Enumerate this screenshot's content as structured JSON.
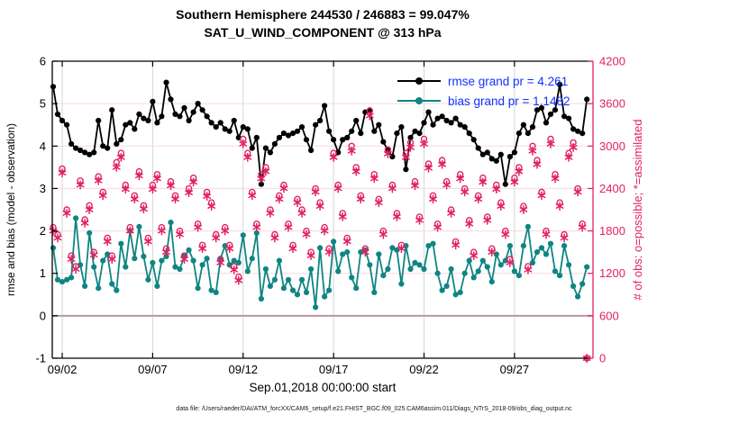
{
  "header": {
    "title_line1": "Southern Hemisphere 244530 / 246883 = 99.047%",
    "title_line2": "SAT_U_WIND_COMPONENT @ 313 hPa"
  },
  "footer": {
    "datafile": "data file: /Users/raeder/DAI/ATM_forcXX/CAM6_setup/f.e21.FHIST_BGC.f09_025.CAM6assim.011/Diags_NTrS_2018-09/obs_diag_output.nc"
  },
  "chart_data": {
    "type": "line",
    "title": "Southern Hemisphere 244530 / 246883 = 99.047% | SAT_U_WIND_COMPONENT @ 313 hPa",
    "xlabel": "Sep.01,2018 00:00:00 start",
    "ylabel_left": "rmse and bias (model - observation)",
    "ylabel_right": "# of obs: o=possible; *=assimilated",
    "ylim_left": [
      -1,
      6
    ],
    "yticks_left": [
      -1,
      0,
      1,
      2,
      3,
      4,
      5,
      6
    ],
    "ylim_right": [
      0,
      4200
    ],
    "yticks_right": [
      0,
      600,
      1200,
      1800,
      2400,
      3000,
      3600,
      4200
    ],
    "grid": true,
    "legend_position": "top-right-inside",
    "xlim_days": [
      0.45,
      30.34
    ],
    "x_start_day": 0.5,
    "x_step_days": 0.25,
    "x_epoch": "Sep.01,2018 00:00:00",
    "xticks": [
      {
        "day": 1,
        "label": "09/02"
      },
      {
        "day": 6,
        "label": "09/07"
      },
      {
        "day": 11,
        "label": "09/12"
      },
      {
        "day": 16,
        "label": "09/17"
      },
      {
        "day": 21,
        "label": "09/22"
      },
      {
        "day": 26,
        "label": "09/27"
      }
    ],
    "colors": {
      "rmse": "#000000",
      "bias": "#0f8583",
      "obs_counts": "#e22063",
      "legend_text": "#1133ff",
      "grid_horizontal": "#f5d8e0",
      "grid_vertical": "#d6d6d6",
      "zero_line": "#b5999b",
      "axis_left": "#000000",
      "axis_right": "#e22063"
    },
    "series": [
      {
        "name": "rmse",
        "legend_label": "rmse grand pr = 4.261",
        "grand_value": 4.261,
        "color": "#000000",
        "axis": "left",
        "values": [
          5.4,
          4.75,
          4.6,
          4.5,
          4.05,
          3.95,
          3.9,
          3.85,
          3.8,
          3.85,
          4.6,
          4.0,
          3.95,
          4.85,
          4.05,
          4.15,
          4.5,
          4.55,
          4.4,
          4.75,
          4.65,
          4.6,
          5.05,
          4.55,
          4.7,
          5.5,
          5.1,
          4.75,
          4.7,
          4.9,
          4.6,
          4.8,
          5.0,
          4.85,
          4.7,
          4.55,
          4.45,
          4.55,
          4.4,
          4.35,
          4.6,
          4.2,
          4.45,
          4.4,
          3.95,
          4.2,
          3.1,
          3.95,
          3.85,
          4.05,
          4.2,
          4.3,
          4.25,
          4.3,
          4.35,
          4.45,
          4.15,
          3.9,
          4.5,
          4.6,
          4.95,
          4.35,
          4.15,
          3.85,
          4.15,
          4.2,
          4.35,
          4.6,
          4.3,
          4.8,
          4.85,
          4.35,
          4.5,
          4.1,
          3.9,
          3.75,
          4.3,
          4.45,
          3.45,
          4.2,
          4.35,
          4.3,
          4.55,
          4.8,
          4.5,
          4.65,
          4.7,
          4.6,
          4.55,
          4.65,
          4.5,
          4.45,
          4.3,
          4.15,
          3.95,
          3.8,
          3.85,
          3.7,
          3.65,
          3.8,
          3.1,
          3.75,
          3.85,
          4.3,
          4.5,
          4.3,
          4.45,
          4.85,
          4.9,
          4.55,
          4.75,
          4.85,
          5.45,
          4.7,
          4.65,
          4.4,
          4.35,
          4.3,
          5.1
        ]
      },
      {
        "name": "bias",
        "legend_label": "bias grand pr = 1.1482",
        "grand_value": 1.1482,
        "color": "#0f8583",
        "axis": "left",
        "values": [
          1.6,
          0.85,
          0.8,
          0.85,
          0.9,
          2.3,
          1.2,
          0.7,
          1.95,
          1.15,
          0.65,
          1.3,
          1.45,
          0.75,
          0.6,
          1.7,
          1.15,
          2.0,
          1.35,
          2.1,
          1.4,
          0.85,
          1.25,
          0.7,
          1.3,
          1.4,
          2.2,
          1.15,
          1.1,
          1.4,
          1.55,
          1.3,
          0.65,
          1.2,
          1.35,
          0.6,
          0.55,
          1.35,
          1.65,
          1.2,
          1.3,
          1.25,
          1.9,
          1.05,
          1.35,
          1.95,
          0.4,
          1.1,
          0.7,
          0.85,
          1.3,
          0.65,
          0.85,
          0.6,
          0.5,
          0.85,
          0.55,
          1.1,
          0.2,
          1.6,
          0.45,
          0.6,
          1.75,
          1.05,
          1.45,
          1.5,
          0.9,
          0.65,
          1.5,
          1.55,
          1.2,
          0.55,
          1.45,
          0.95,
          1.1,
          1.6,
          1.55,
          0.75,
          1.65,
          1.1,
          1.25,
          1.2,
          1.1,
          1.65,
          1.7,
          1.0,
          0.6,
          0.7,
          1.1,
          0.5,
          0.55,
          1.0,
          1.3,
          0.9,
          1.05,
          1.3,
          1.15,
          0.8,
          1.45,
          1.2,
          1.3,
          1.65,
          1.05,
          0.95,
          1.65,
          2.1,
          1.25,
          1.5,
          1.6,
          1.45,
          1.7,
          1.05,
          0.95,
          1.65,
          1.2,
          0.7,
          0.45,
          0.75,
          1.15
        ]
      }
    ],
    "obs_counts": {
      "axis": "right",
      "color": "#e22063",
      "possible_marker": "o",
      "assimilated_marker": "*",
      "possible": [
        1850,
        1750,
        2680,
        2100,
        1450,
        1300,
        2510,
        1960,
        2160,
        1500,
        2570,
        2350,
        1700,
        1450,
        2770,
        2900,
        2450,
        1850,
        2300,
        2640,
        2160,
        1700,
        2450,
        2600,
        1850,
        1550,
        2500,
        2300,
        1800,
        1450,
        2400,
        2550,
        1900,
        1600,
        2350,
        2200,
        1750,
        1400,
        1850,
        1600,
        1300,
        1150,
        3100,
        2900,
        2350,
        1900,
        2600,
        2700,
        2100,
        1750,
        2300,
        2450,
        1900,
        1600,
        2250,
        2100,
        1800,
        1500,
        2400,
        2200,
        1850,
        1550,
        2900,
        2450,
        2050,
        1700,
        3000,
        2700,
        2300,
        1550,
        3500,
        2600,
        2250,
        1800,
        2950,
        2450,
        2050,
        1600,
        2900,
        3050,
        2500,
        2000,
        3100,
        2750,
        2300,
        1900,
        2800,
        2500,
        2100,
        1650,
        2600,
        2400,
        1950,
        1500,
        2300,
        2550,
        2000,
        1550,
        2450,
        2200,
        1800,
        1400,
        2550,
        2700,
        2150,
        1300,
        3000,
        2800,
        2350,
        1800,
        3100,
        2600,
        2200,
        1750,
        2900,
        3050,
        2400,
        1900,
        0
      ],
      "assimilated": [
        1800,
        1700,
        2620,
        2050,
        1400,
        1260,
        2450,
        1910,
        2100,
        1460,
        2510,
        2300,
        1650,
        1400,
        2700,
        2840,
        2390,
        1800,
        2250,
        2580,
        2110,
        1650,
        2390,
        2540,
        1800,
        1500,
        2440,
        2250,
        1750,
        1400,
        2340,
        2490,
        1850,
        1550,
        2290,
        2150,
        1700,
        1350,
        1800,
        1550,
        1250,
        1100,
        3030,
        2840,
        2300,
        1850,
        2540,
        2640,
        2050,
        1700,
        2250,
        2400,
        1850,
        1550,
        2200,
        2050,
        1750,
        1450,
        2350,
        2150,
        1800,
        1500,
        2840,
        2400,
        2000,
        1650,
        2930,
        2640,
        2250,
        1500,
        3430,
        2540,
        2200,
        1750,
        2890,
        2400,
        2000,
        1550,
        2840,
        2980,
        2440,
        1950,
        3030,
        2690,
        2250,
        1850,
        2740,
        2450,
        2050,
        1600,
        2540,
        2350,
        1900,
        1450,
        2250,
        2490,
        1950,
        1500,
        2390,
        2150,
        1750,
        1350,
        2490,
        2640,
        2100,
        1250,
        2930,
        2740,
        2300,
        1750,
        3030,
        2540,
        2150,
        1700,
        2840,
        2980,
        2350,
        1850,
        0
      ]
    },
    "legend": {
      "entries": [
        {
          "label": "rmse grand pr = 4.261",
          "color": "#000000"
        },
        {
          "label": "bias grand pr = 1.1482",
          "color": "#0f8583"
        }
      ]
    }
  }
}
